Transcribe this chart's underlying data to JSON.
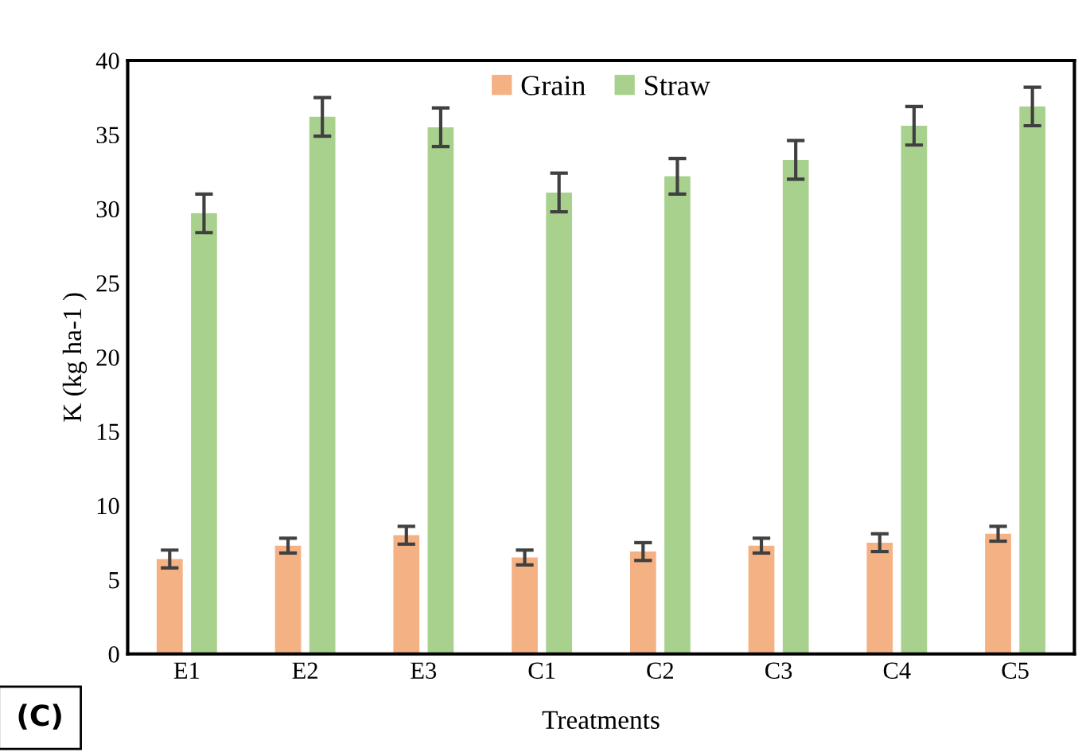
{
  "chart_data": {
    "type": "bar",
    "xlabel": "Treatments",
    "ylabel": "K (kg ha-1 )",
    "categories": [
      "E1",
      "E2",
      "E3",
      "C1",
      "C2",
      "C3",
      "C4",
      "C5"
    ],
    "series": [
      {
        "name": "Grain",
        "color": "#f4b183",
        "values": [
          6.4,
          7.3,
          8.0,
          6.5,
          6.9,
          7.3,
          7.5,
          8.1
        ],
        "errors": [
          0.6,
          0.5,
          0.6,
          0.5,
          0.6,
          0.5,
          0.6,
          0.5
        ]
      },
      {
        "name": "Straw",
        "color": "#a9d18e",
        "values": [
          29.7,
          36.2,
          35.5,
          31.1,
          32.2,
          33.3,
          35.6,
          36.9
        ],
        "errors": [
          1.3,
          1.3,
          1.3,
          1.3,
          1.2,
          1.3,
          1.3,
          1.3
        ]
      }
    ],
    "ylim": [
      0,
      40
    ],
    "yticks": [
      0,
      5,
      10,
      15,
      20,
      25,
      30,
      35,
      40
    ],
    "grid": false,
    "legend": "top",
    "annotations": [
      "(C)"
    ]
  }
}
